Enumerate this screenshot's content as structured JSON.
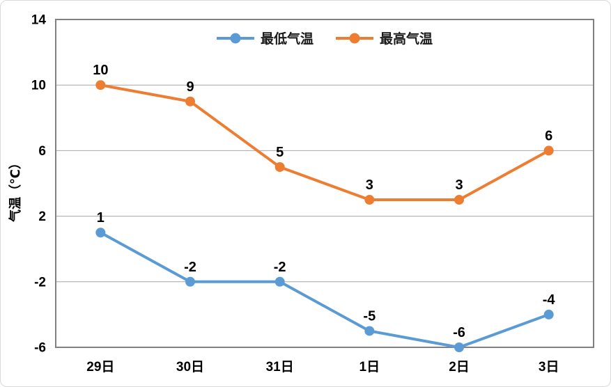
{
  "figure": {
    "background": "#ffffff",
    "frame_border_color": "#d9d9d9"
  },
  "chart_data": {
    "type": "line",
    "categories": [
      "29日",
      "30日",
      "31日",
      "1日",
      "2日",
      "3日"
    ],
    "series": [
      {
        "name": "最低气温",
        "color": "#5b9bd5",
        "values": [
          1,
          -2,
          -2,
          -5,
          -6,
          -4
        ]
      },
      {
        "name": "最高气温",
        "color": "#ed7d31",
        "values": [
          10,
          9,
          5,
          3,
          3,
          6
        ]
      }
    ],
    "title": "",
    "xlabel": "",
    "ylabel": "气温（℃）",
    "ylim": [
      -6,
      14
    ],
    "yticks": [
      14,
      10,
      6,
      2,
      -2,
      -6
    ],
    "grid": true,
    "data_labels": true,
    "legend_position": "top-center",
    "legend_order": [
      "最低气温",
      "最高气温"
    ],
    "colors": {
      "gridline": "#a6a6a6",
      "plot_border": "#808080",
      "tick_label": "#000000",
      "data_label": "#000000",
      "axis_title": "#000000",
      "legend_text": "#1a1a1a"
    }
  }
}
